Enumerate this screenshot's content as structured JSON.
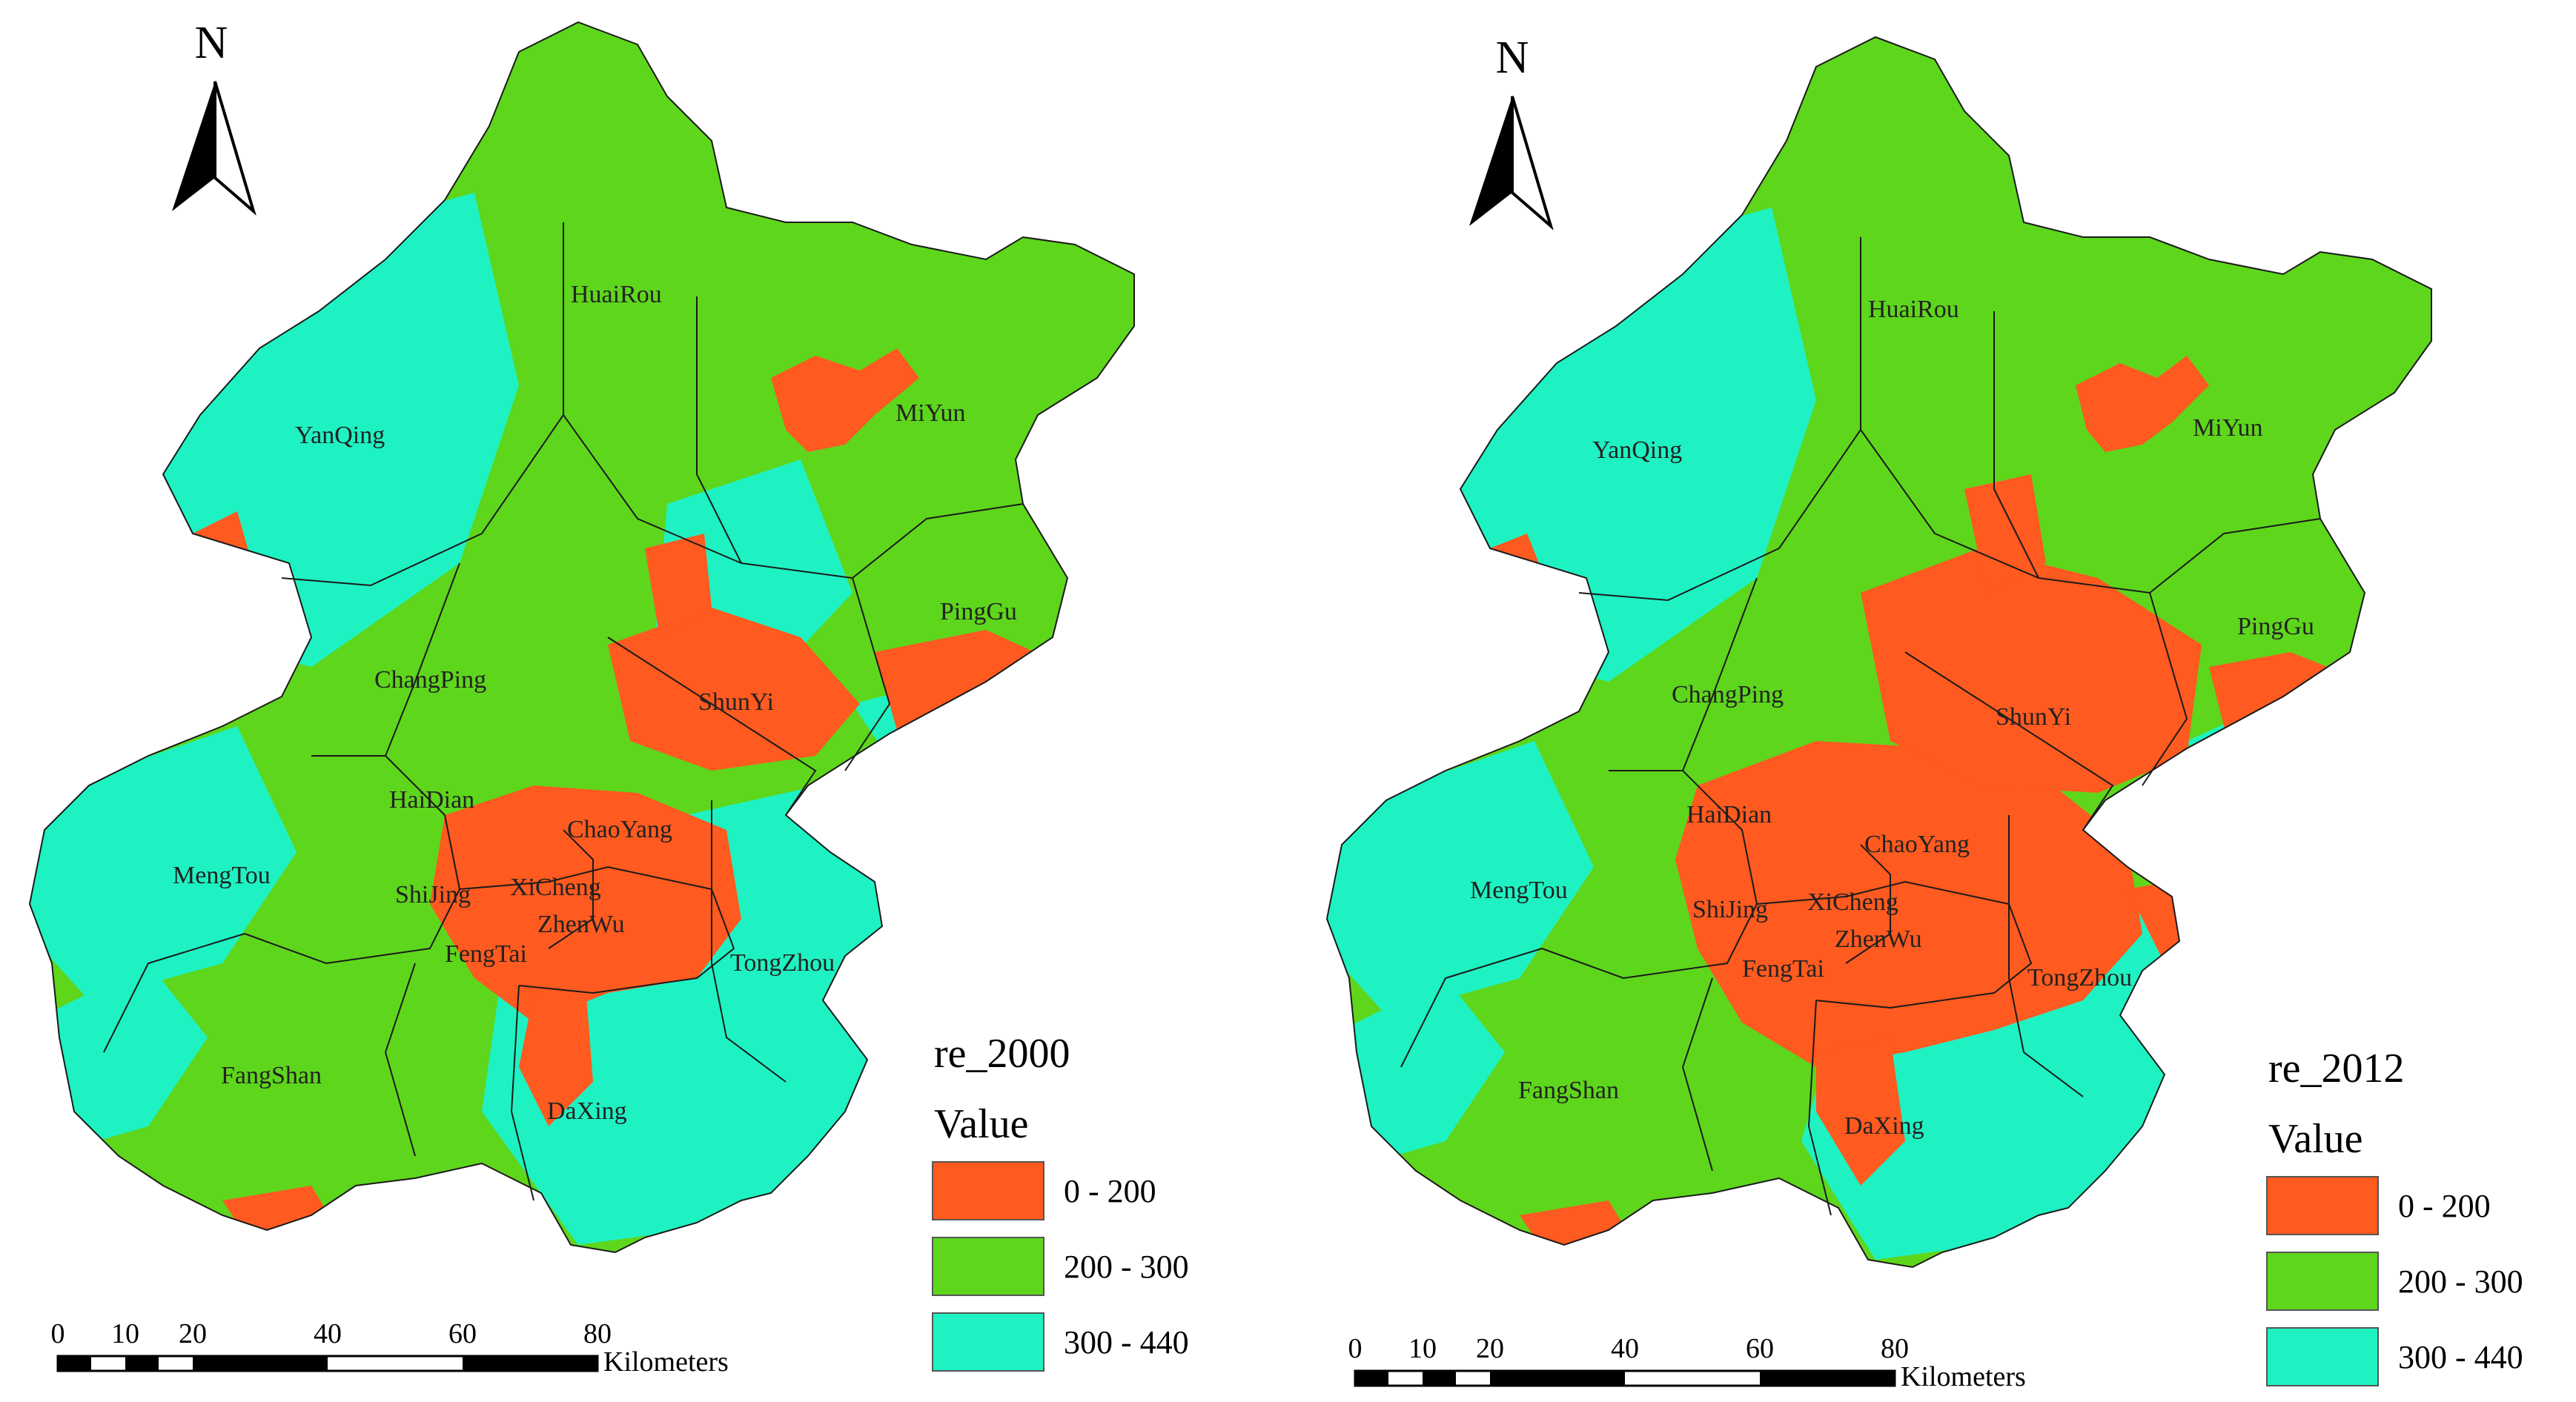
{
  "colors": {
    "low": "#ff5a1f",
    "mid": "#5ed61c",
    "high": "#1ef2c2",
    "boundary": "#1a1a1a"
  },
  "maps": [
    {
      "legend_title": "re_2000",
      "north": "N",
      "districts": [
        "HuaiRou",
        "MiYun",
        "YanQing",
        "PingGu",
        "ChangPing",
        "ShunYi",
        "HaiDian",
        "ChaoYang",
        "MengTou",
        "ShiJing",
        "XiCheng",
        "ZhenWu",
        "FengTai",
        "TongZhou",
        "FangShan",
        "DaXing"
      ]
    },
    {
      "legend_title": "re_2012",
      "north": "N",
      "districts": [
        "HuaiRou",
        "MiYun",
        "YanQing",
        "PingGu",
        "ChangPing",
        "ShunYi",
        "HaiDian",
        "ChaoYang",
        "MengTou",
        "ShiJing",
        "XiCheng",
        "ZhenWu",
        "FengTai",
        "TongZhou",
        "FangShan",
        "DaXing"
      ]
    }
  ],
  "legend": {
    "heading": "Value",
    "classes": [
      {
        "label": "0 - 200",
        "color": "#ff5a1f"
      },
      {
        "label": "200 - 300",
        "color": "#5ed61c"
      },
      {
        "label": "300 - 440",
        "color": "#1ef2c2"
      }
    ]
  },
  "scale_bar": {
    "ticks": [
      "0",
      "10",
      "20",
      "40",
      "60",
      "80"
    ],
    "unit": "Kilometers"
  }
}
